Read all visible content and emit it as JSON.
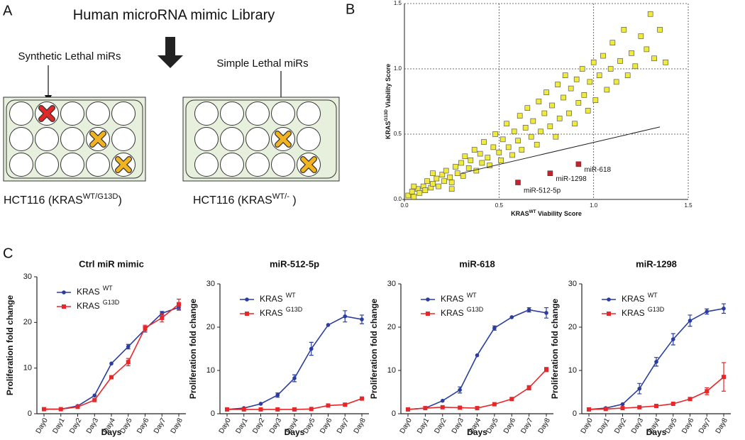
{
  "panel_labels": [
    "A",
    "B",
    "C"
  ],
  "diagram": {
    "title": "Human microRNA mimic Library",
    "left_annotation": "Synthetic Lethal miRs",
    "right_annotation": "Simple Lethal miRs",
    "left_plate_label": [
      "HCT116 (KRAS",
      "WT/G13D",
      ")"
    ],
    "right_plate_label": [
      "HCT116 (KRAS",
      "WT/-",
      "  )"
    ]
  },
  "chart_data": [
    {
      "type": "scatter",
      "xlabel": [
        "KRAS",
        "WT",
        " Viability Score"
      ],
      "ylabel": [
        "KRAS",
        "G13D",
        " Viability Score"
      ],
      "xlim": [
        0,
        1.5
      ],
      "ylim": [
        0,
        1.5
      ],
      "xticks": [
        {
          "value": 0,
          "label": "0.0"
        },
        0.5,
        {
          "value": 1,
          "label": "1.0"
        },
        1.5
      ],
      "yticks": [
        {
          "value": 0,
          "label": "0.0"
        },
        0.5,
        {
          "value": 1,
          "label": "1.0"
        },
        1.5
      ],
      "grid": true,
      "fit_line": {
        "x": [
          0.3,
          1.35
        ],
        "values": [
          0.2,
          0.555
        ],
        "color": "#222222"
      },
      "series": [
        {
          "color": "#f0ea3c",
          "x": [
            0.02,
            0.04,
            0.05,
            0.07,
            0.08,
            0.1,
            0.11,
            0.12,
            0.14,
            0.15,
            0.17,
            0.18,
            0.2,
            0.21,
            0.22,
            0.24,
            0.25,
            0.27,
            0.28,
            0.3,
            0.31,
            0.32,
            0.34,
            0.35,
            0.37,
            0.38,
            0.4,
            0.41,
            0.42,
            0.44,
            0.45,
            0.47,
            0.48,
            0.5,
            0.51,
            0.52,
            0.54,
            0.55,
            0.57,
            0.58,
            0.6,
            0.61,
            0.62,
            0.64,
            0.65,
            0.67,
            0.68,
            0.7,
            0.71,
            0.72,
            0.74,
            0.75,
            0.77,
            0.78,
            0.8,
            0.81,
            0.82,
            0.84,
            0.85,
            0.87,
            0.88,
            0.9,
            0.91,
            0.92,
            0.94,
            0.95,
            0.97,
            0.98,
            1.0,
            1.01,
            1.03,
            1.05,
            1.07,
            1.09,
            1.1,
            1.12,
            1.14,
            1.16,
            1.18,
            1.2,
            1.22,
            1.25,
            1.28,
            1.3,
            1.32,
            1.35,
            1.38,
            0.05,
            0.15,
            0.25
          ],
          "values": [
            0.03,
            0.06,
            0.02,
            0.08,
            0.05,
            0.1,
            0.07,
            0.14,
            0.09,
            0.12,
            0.16,
            0.1,
            0.19,
            0.14,
            0.22,
            0.17,
            0.13,
            0.25,
            0.2,
            0.28,
            0.18,
            0.33,
            0.24,
            0.3,
            0.38,
            0.22,
            0.35,
            0.28,
            0.44,
            0.32,
            0.26,
            0.4,
            0.5,
            0.36,
            0.3,
            0.46,
            0.58,
            0.4,
            0.34,
            0.52,
            0.45,
            0.64,
            0.38,
            0.55,
            0.7,
            0.48,
            0.6,
            0.42,
            0.75,
            0.52,
            0.66,
            0.82,
            0.56,
            0.72,
            0.48,
            0.88,
            0.62,
            0.78,
            0.95,
            0.66,
            0.85,
            0.58,
            0.92,
            0.74,
            1.0,
            0.8,
            0.68,
            0.9,
            1.05,
            0.76,
            0.95,
            1.1,
            0.84,
            1.0,
            1.2,
            0.9,
            1.06,
            1.3,
            0.95,
            1.12,
            1.02,
            1.25,
            1.15,
            1.42,
            1.08,
            1.3,
            1.05,
            0.1,
            0.2,
            0.08
          ]
        },
        {
          "color": "#c8202a",
          "x": [
            0.6,
            0.77,
            0.92
          ],
          "values": [
            0.13,
            0.2,
            0.27
          ],
          "point_labels": [
            "miR-512-5p",
            "miR-1298",
            "miR-618"
          ]
        }
      ]
    },
    {
      "type": "line",
      "title": "Ctrl miR mimic",
      "ylabel": "Proliferation fold change",
      "xlabel": "Days",
      "categories": [
        "Day0",
        "Day1",
        "Day2",
        "Day3",
        "Day4",
        "Day5",
        "Day6",
        "Day7",
        "Day8"
      ],
      "ylim": [
        0,
        30
      ],
      "yticks": [
        0,
        10,
        20,
        30
      ],
      "series": [
        {
          "name": "KRAS",
          "name_sup": "WT",
          "color": "#2b3d9e",
          "marker": "circle",
          "values": [
            1,
            1,
            1.7,
            4,
            11,
            14.7,
            18.5,
            22,
            23.3
          ],
          "errors": [
            0,
            0,
            0,
            0,
            0,
            0.5,
            0.6,
            0.4,
            0.6
          ]
        },
        {
          "name": "KRAS",
          "name_sup": "G13D",
          "color": "#e8272a",
          "marker": "square",
          "values": [
            1,
            1,
            1.5,
            3,
            8,
            11.3,
            18.8,
            21,
            24
          ],
          "errors": [
            0,
            0,
            0,
            0,
            0,
            0.8,
            0.6,
            0.9,
            1.1
          ]
        }
      ]
    },
    {
      "type": "line",
      "title": "miR-512-5p",
      "ylabel": "Proliferation fold change",
      "xlabel": "Days",
      "categories": [
        "Day0",
        "Day1",
        "Day2",
        "Day3",
        "Day4",
        "Day5",
        "Day6",
        "Day7",
        "Day8"
      ],
      "ylim": [
        0,
        30
      ],
      "yticks": [
        0,
        10,
        20,
        30
      ],
      "series": [
        {
          "name": "KRAS",
          "name_sup": "WT",
          "color": "#2b3d9e",
          "marker": "circle",
          "values": [
            1,
            1.3,
            2.3,
            4.3,
            8.2,
            15,
            20.5,
            22.5,
            21.8
          ],
          "errors": [
            0,
            0,
            0,
            0.5,
            0.8,
            1.5,
            0,
            1.3,
            1
          ]
        },
        {
          "name": "KRAS",
          "name_sup": "G13D",
          "color": "#e8272a",
          "marker": "square",
          "values": [
            1,
            1,
            1,
            1,
            1,
            1.1,
            1.9,
            2.1,
            3.5
          ],
          "errors": [
            0,
            0,
            0,
            0,
            0,
            0,
            0,
            0.3,
            0.3
          ]
        }
      ]
    },
    {
      "type": "line",
      "title": "miR-618",
      "ylabel": "Proliferation fold change",
      "xlabel": "Days",
      "categories": [
        "Day0",
        "Day1",
        "Day2",
        "Day3",
        "Day4",
        "Day5",
        "Day6",
        "Day7",
        "Day8"
      ],
      "ylim": [
        0,
        30
      ],
      "yticks": [
        0,
        10,
        20,
        30
      ],
      "series": [
        {
          "name": "KRAS",
          "name_sup": "WT",
          "color": "#2b3d9e",
          "marker": "circle",
          "values": [
            1,
            1.3,
            3,
            5.5,
            13.5,
            19.8,
            22.3,
            24,
            23.3
          ],
          "errors": [
            0,
            0,
            0,
            0.7,
            0,
            0.5,
            0,
            0.5,
            1.2
          ]
        },
        {
          "name": "KRAS",
          "name_sup": "G13D",
          "color": "#e8272a",
          "marker": "square",
          "values": [
            1,
            1.3,
            1.5,
            1.4,
            1.3,
            2.2,
            3.4,
            6,
            10.2
          ],
          "errors": [
            0,
            0,
            0,
            0,
            0,
            0,
            0,
            0.5,
            0.5
          ]
        }
      ]
    },
    {
      "type": "line",
      "title": "miR-1298",
      "ylabel": "Proliferation fold change",
      "xlabel": "Days",
      "categories": [
        "Day0",
        "Day1",
        "Day2",
        "Day3",
        "Day4",
        "Day5",
        "Day6",
        "Day7",
        "Day8"
      ],
      "ylim": [
        0,
        30
      ],
      "yticks": [
        0,
        10,
        20,
        30
      ],
      "series": [
        {
          "name": "KRAS",
          "name_sup": "WT",
          "color": "#2b3d9e",
          "marker": "circle",
          "values": [
            1,
            1.3,
            2.2,
            5.8,
            12,
            17.2,
            21.5,
            23.6,
            24.3
          ],
          "errors": [
            0,
            0,
            0,
            1.2,
            1,
            1.3,
            1.3,
            0.6,
            1.1
          ]
        },
        {
          "name": "KRAS",
          "name_sup": "G13D",
          "color": "#e8272a",
          "marker": "square",
          "values": [
            1,
            1.1,
            1.3,
            1.5,
            1.8,
            2.3,
            3.4,
            5.2,
            8.5
          ],
          "errors": [
            0,
            0,
            0,
            0,
            0,
            0,
            0,
            0.8,
            3.3
          ]
        }
      ]
    }
  ]
}
